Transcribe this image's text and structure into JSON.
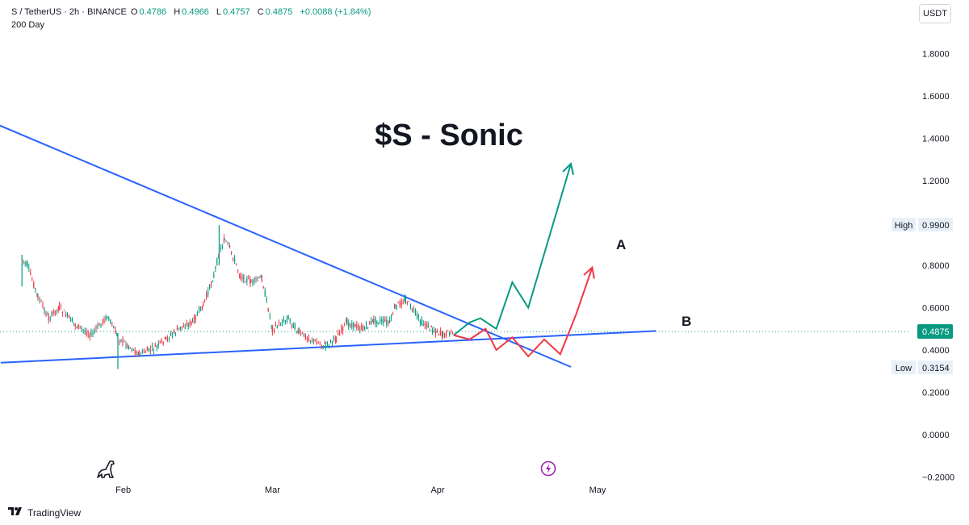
{
  "header": {
    "symbol": "S / TetherUS · 2h · BINANCE",
    "open_label": "O",
    "open_value": "0.4786",
    "high_label": "H",
    "high_value": "0.4966",
    "low_label": "L",
    "low_value": "0.4757",
    "close_label": "C",
    "close_value": "0.4875",
    "change": "+0.0088 (+1.84%)",
    "indicator": "200 Day"
  },
  "currency_button": "USDT",
  "footer": {
    "brand": "TradingView"
  },
  "icons": {
    "left": "dinosaur-icon",
    "right": "lightning-icon",
    "brand": "tradingview-logo-icon"
  },
  "colors": {
    "up": "#089981",
    "down": "#f23645",
    "trendline": "#2962ff",
    "path_a": "#089981",
    "path_b": "#f23645",
    "price_tag": "#089981"
  },
  "chart_data": {
    "type": "line",
    "title": "$S - Sonic",
    "x_tick_labels": [
      "Feb",
      "Mar",
      "Apr",
      "May"
    ],
    "y_tick_values": [
      1.8,
      1.6,
      1.4,
      1.2,
      0.8,
      0.6,
      0.4,
      0.2,
      0.0,
      -0.2
    ],
    "y_tick_labels": [
      "1.8000",
      "1.6000",
      "1.4000",
      "1.2000",
      "0.8000",
      "0.6000",
      "0.4000",
      "0.2000",
      "0.0000",
      "−0.2000"
    ],
    "ylim": [
      -0.2,
      1.85
    ],
    "xlim": [
      "2025-01-11",
      "2025-05-22"
    ],
    "price_series": {
      "x": [
        "2025-01-13",
        "2025-01-14",
        "2025-01-16",
        "2025-01-18",
        "2025-01-20",
        "2025-01-23",
        "2025-01-26",
        "2025-01-29",
        "2025-01-31",
        "2025-02-02",
        "2025-02-04",
        "2025-02-07",
        "2025-02-09",
        "2025-02-12",
        "2025-02-14",
        "2025-02-16",
        "2025-02-18",
        "2025-02-19",
        "2025-02-20",
        "2025-02-21",
        "2025-02-23",
        "2025-02-25",
        "2025-02-27",
        "2025-03-01",
        "2025-03-04",
        "2025-03-06",
        "2025-03-09",
        "2025-03-11",
        "2025-03-13",
        "2025-03-15",
        "2025-03-18",
        "2025-03-20",
        "2025-03-23",
        "2025-03-24",
        "2025-03-26",
        "2025-03-29",
        "2025-03-31",
        "2025-04-02",
        "2025-04-04"
      ],
      "y": [
        0.83,
        0.8,
        0.65,
        0.55,
        0.6,
        0.52,
        0.47,
        0.56,
        0.46,
        0.42,
        0.38,
        0.41,
        0.45,
        0.51,
        0.53,
        0.61,
        0.75,
        0.86,
        0.92,
        0.88,
        0.75,
        0.72,
        0.74,
        0.5,
        0.55,
        0.48,
        0.44,
        0.42,
        0.46,
        0.53,
        0.5,
        0.54,
        0.53,
        0.6,
        0.64,
        0.53,
        0.5,
        0.47,
        0.4875
      ]
    },
    "spikes": [
      {
        "x": "2025-01-13",
        "y_high": 0.85,
        "y_low": 0.7
      },
      {
        "x": "2025-01-31",
        "y_high": 0.48,
        "y_low": 0.31
      },
      {
        "x": "2025-02-19",
        "y_high": 0.99,
        "y_low": 0.8
      }
    ],
    "trendlines": [
      {
        "name": "descending",
        "x": [
          "2025-01-07",
          "2025-04-26"
        ],
        "y": [
          1.48,
          0.32
        ]
      },
      {
        "name": "support",
        "x": [
          "2025-01-09",
          "2025-05-12"
        ],
        "y": [
          0.34,
          0.49
        ]
      }
    ],
    "scenario_paths": [
      {
        "label": "A",
        "x": [
          "2025-04-04",
          "2025-04-07",
          "2025-04-09",
          "2025-04-12",
          "2025-04-15",
          "2025-04-18",
          "2025-04-26"
        ],
        "y": [
          0.47,
          0.53,
          0.55,
          0.5,
          0.72,
          0.6,
          1.28
        ]
      },
      {
        "label": "B",
        "x": [
          "2025-04-04",
          "2025-04-07",
          "2025-04-10",
          "2025-04-12",
          "2025-04-15",
          "2025-04-18",
          "2025-04-21",
          "2025-04-24",
          "2025-04-27",
          "2025-04-30"
        ],
        "y": [
          0.47,
          0.45,
          0.5,
          0.4,
          0.46,
          0.37,
          0.45,
          0.38,
          0.57,
          0.79
        ]
      }
    ],
    "current_price": 0.4875,
    "current_price_label": "0.4875",
    "high_marker": {
      "label": "High",
      "value": 0.99,
      "value_label": "0.9900"
    },
    "low_marker": {
      "label": "Low",
      "value": 0.3154,
      "value_label": "0.3154"
    }
  }
}
